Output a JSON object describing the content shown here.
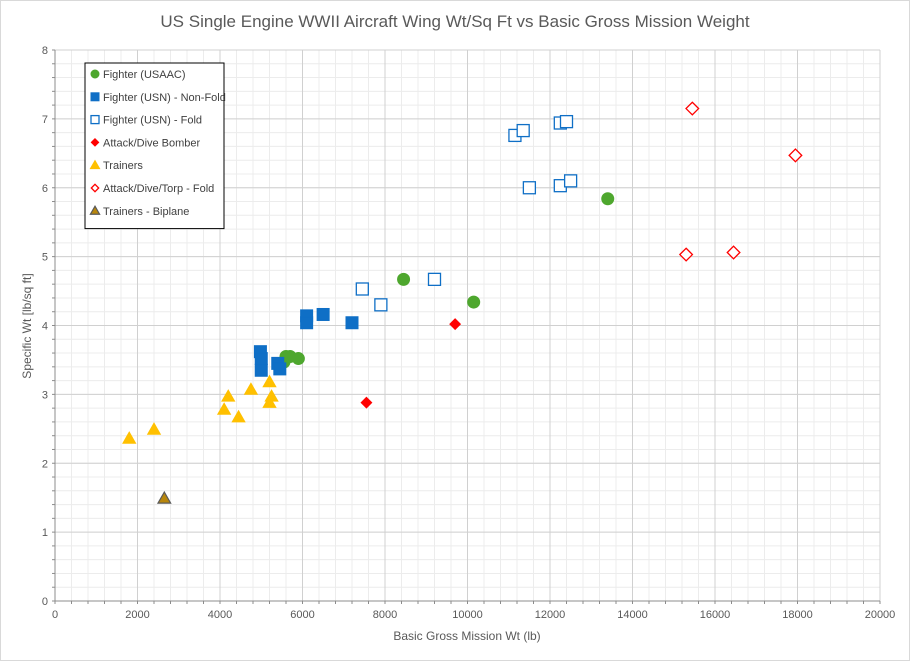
{
  "chart_data": {
    "type": "scatter",
    "title": "US Single Engine WWII Aircraft Wing Wt/Sq Ft vs Basic Gross Mission Weight",
    "xlabel": "Basic Gross Mission Wt (lb)",
    "ylabel": "Specific Wt [lb/sq ft]",
    "xlim": [
      0,
      20000
    ],
    "ylim": [
      0,
      8
    ],
    "xticks": [
      0,
      2000,
      4000,
      6000,
      8000,
      10000,
      12000,
      14000,
      16000,
      18000,
      20000
    ],
    "yticks": [
      0,
      1,
      2,
      3,
      4,
      5,
      6,
      7,
      8
    ],
    "x_minor_step": 400,
    "y_minor_step": 0.2,
    "grid": true,
    "legend_position": "top-left",
    "series": [
      {
        "name": "Fighter (USAAC)",
        "marker": "circle",
        "filled": true,
        "color": "#4ea72e",
        "points": [
          [
            5600,
            3.55
          ],
          [
            5700,
            3.55
          ],
          [
            5550,
            3.47
          ],
          [
            5900,
            3.52
          ],
          [
            8450,
            4.67
          ],
          [
            10150,
            4.34
          ],
          [
            13400,
            5.84
          ]
        ]
      },
      {
        "name": "Fighter (USN) - Non-Fold",
        "marker": "square",
        "filled": true,
        "color": "#0f6fc6",
        "points": [
          [
            4980,
            3.62
          ],
          [
            5000,
            3.52
          ],
          [
            5000,
            3.35
          ],
          [
            5400,
            3.45
          ],
          [
            5450,
            3.37
          ],
          [
            6100,
            4.14
          ],
          [
            6100,
            4.04
          ],
          [
            6500,
            4.16
          ],
          [
            7200,
            4.04
          ]
        ]
      },
      {
        "name": "Fighter (USN) - Fold",
        "marker": "square",
        "filled": false,
        "color": "#0f6fc6",
        "points": [
          [
            7450,
            4.53
          ],
          [
            7900,
            4.3
          ],
          [
            9200,
            4.67
          ],
          [
            11150,
            6.76
          ],
          [
            11350,
            6.83
          ],
          [
            11500,
            6.0
          ],
          [
            12250,
            6.94
          ],
          [
            12400,
            6.96
          ],
          [
            12250,
            6.03
          ],
          [
            12500,
            6.1
          ]
        ]
      },
      {
        "name": "Attack/Dive Bomber",
        "marker": "diamond",
        "filled": true,
        "color": "#ff0000",
        "points": [
          [
            7550,
            2.88
          ],
          [
            9700,
            4.02
          ]
        ]
      },
      {
        "name": "Trainers",
        "marker": "triangle",
        "filled": true,
        "color": "#ffc000",
        "points": [
          [
            1800,
            2.36
          ],
          [
            2400,
            2.49
          ],
          [
            4100,
            2.78
          ],
          [
            4200,
            2.97
          ],
          [
            4450,
            2.67
          ],
          [
            4750,
            3.07
          ],
          [
            5200,
            3.18
          ],
          [
            5200,
            2.88
          ],
          [
            5250,
            2.97
          ]
        ]
      },
      {
        "name": "Attack/Dive/Torp - Fold",
        "marker": "diamond",
        "filled": false,
        "color": "#ff0000",
        "points": [
          [
            15300,
            5.03
          ],
          [
            15450,
            7.15
          ],
          [
            16450,
            5.06
          ],
          [
            17950,
            6.47
          ]
        ]
      },
      {
        "name": "Trainers - Biplane",
        "marker": "triangle",
        "filled": true,
        "color": "#b8860b",
        "stroke": "#595959",
        "points": [
          [
            2650,
            1.49
          ]
        ]
      }
    ]
  }
}
